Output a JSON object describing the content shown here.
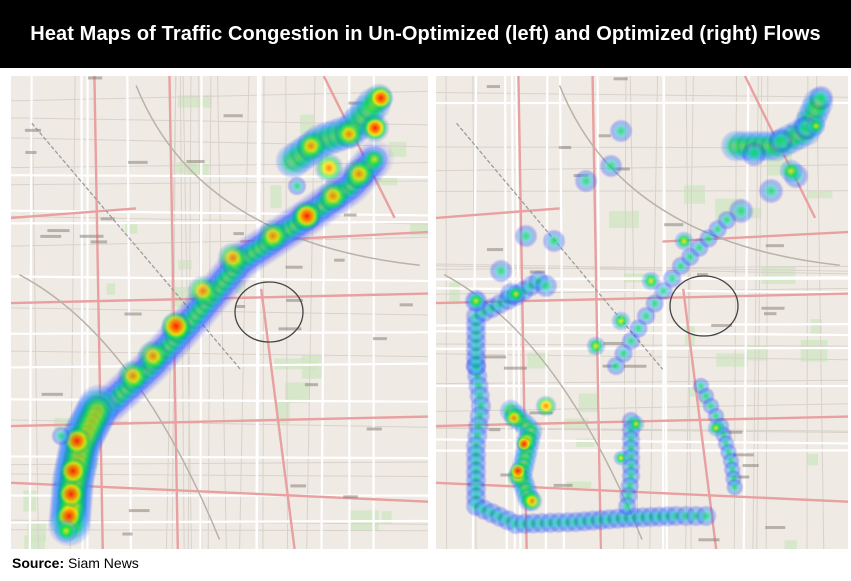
{
  "header": {
    "title": "Heat Maps of Traffic Congestion in Un-Optimized (left) and Optimized (right) Flows"
  },
  "maps": [
    {
      "id": "left",
      "description_label": "Un-Optimized"
    },
    {
      "id": "right",
      "description_label": "Optimized"
    }
  ],
  "footer": {
    "source_label": "Source:",
    "source_value": "Siam News"
  },
  "colors": {
    "title_bar": "#000000",
    "title_text": "#ffffff",
    "map_base": "#efeae4",
    "road_major": "#e8a0a0",
    "road_minor": "#ffffff",
    "park": "#cfe6c0",
    "heat_low": "#2b3cff",
    "heat_mid": "#00e050",
    "heat_high": "#ffe600",
    "heat_peak": "#ff1a00"
  }
}
